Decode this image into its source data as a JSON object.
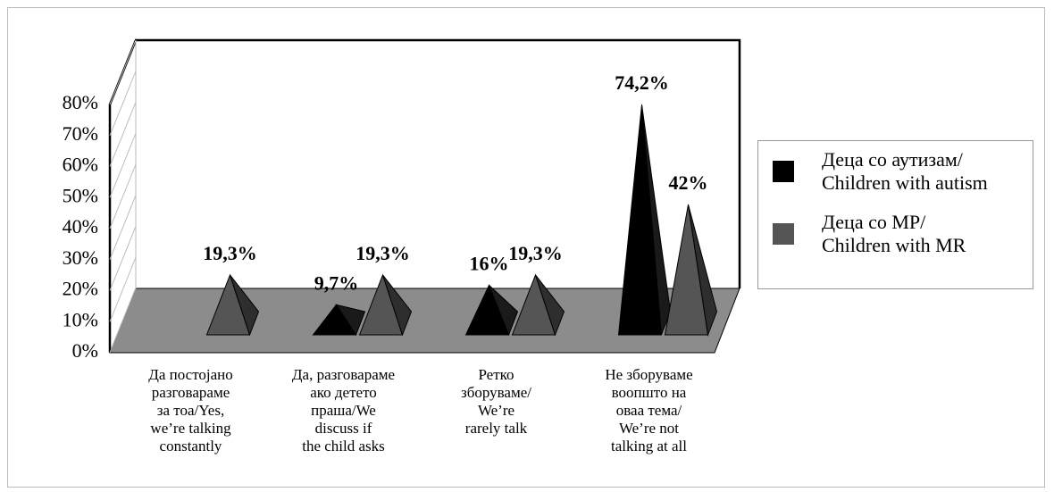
{
  "chart_data": {
    "type": "pyramid3d",
    "categories": [
      "Да постојано\nразговараме\nза тоа/Yes,\nwe’re talking\nconstantly",
      "Да, разговараме\nако детето\nпраша/We\ndiscuss if\nthe child asks",
      "Ретко\nзборуваме/\nWe’re\nrarely talk",
      "Не зборуваме\nвоопшто на\nоваа тема/\nWe’re not\ntalking at all"
    ],
    "series": [
      {
        "name": "Деца со аутизам/\nChildren with autism",
        "color": "#000000",
        "values": [
          null,
          9.7,
          16,
          74.2
        ],
        "value_labels": [
          null,
          "9,7%",
          "16%",
          "74,2%"
        ]
      },
      {
        "name": "Деца со МР/\nChildren with MR",
        "color": "#555555",
        "values": [
          19.3,
          19.3,
          19.3,
          42
        ],
        "value_labels": [
          "19,3%",
          "19,3%",
          "19,3%",
          "42%"
        ]
      }
    ],
    "ylim": [
      0,
      80
    ],
    "yticks": [
      {
        "value": 0,
        "label": "0%"
      },
      {
        "value": 10,
        "label": "10%"
      },
      {
        "value": 20,
        "label": "20%"
      },
      {
        "value": 30,
        "label": "30%"
      },
      {
        "value": 40,
        "label": "40%"
      },
      {
        "value": 50,
        "label": "50%"
      },
      {
        "value": 60,
        "label": "60%"
      },
      {
        "value": 70,
        "label": "70%"
      },
      {
        "value": 80,
        "label": "80%"
      }
    ],
    "legend": "right"
  }
}
